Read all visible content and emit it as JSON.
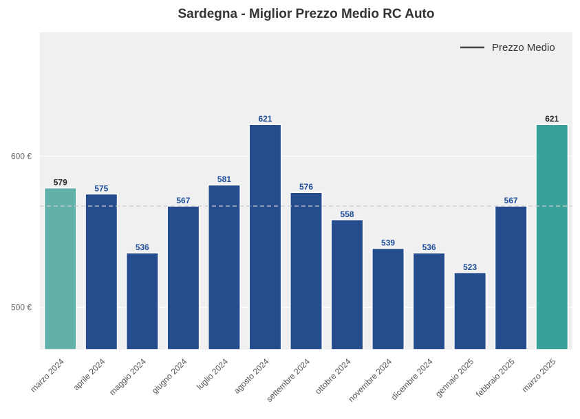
{
  "chart_data": {
    "type": "bar",
    "title": "Sardegna - Miglior Prezzo Medio RC Auto",
    "xlabel": "",
    "ylabel": "",
    "categories": [
      "marzo 2024",
      "aprile 2024",
      "maggio 2024",
      "giugno 2024",
      "luglio 2024",
      "agosto 2024",
      "settembre 2024",
      "ottobre 2024",
      "novembre 2024",
      "dicembre 2024",
      "gennaio 2025",
      "febbraio 2025",
      "marzo 2025"
    ],
    "values": [
      579,
      575,
      536,
      567,
      581,
      621,
      576,
      558,
      539,
      536,
      523,
      567,
      621
    ],
    "value_labels": [
      "579",
      "575",
      "536",
      "567",
      "581",
      "621",
      "576",
      "558",
      "539",
      "536",
      "523",
      "567",
      "621"
    ],
    "ylim": [
      472,
      682
    ],
    "yticks": [
      500,
      600
    ],
    "ytick_labels": [
      "500 €",
      "600 €"
    ],
    "average_line": {
      "value": 567,
      "style": "dashed"
    },
    "legend": {
      "entries": [
        "Prezzo Medio"
      ],
      "placement": "top-right"
    },
    "grid": true,
    "colors": {
      "background": "#f0f0f0",
      "bar_main": "#254c8c",
      "bar_first": "#62b0aa",
      "bar_last": "#39a09a",
      "label_main": "#1f4e9a",
      "label_highlight": "#2b2b2b",
      "average_line": "#cccccc",
      "legend_line": "#444444"
    }
  }
}
